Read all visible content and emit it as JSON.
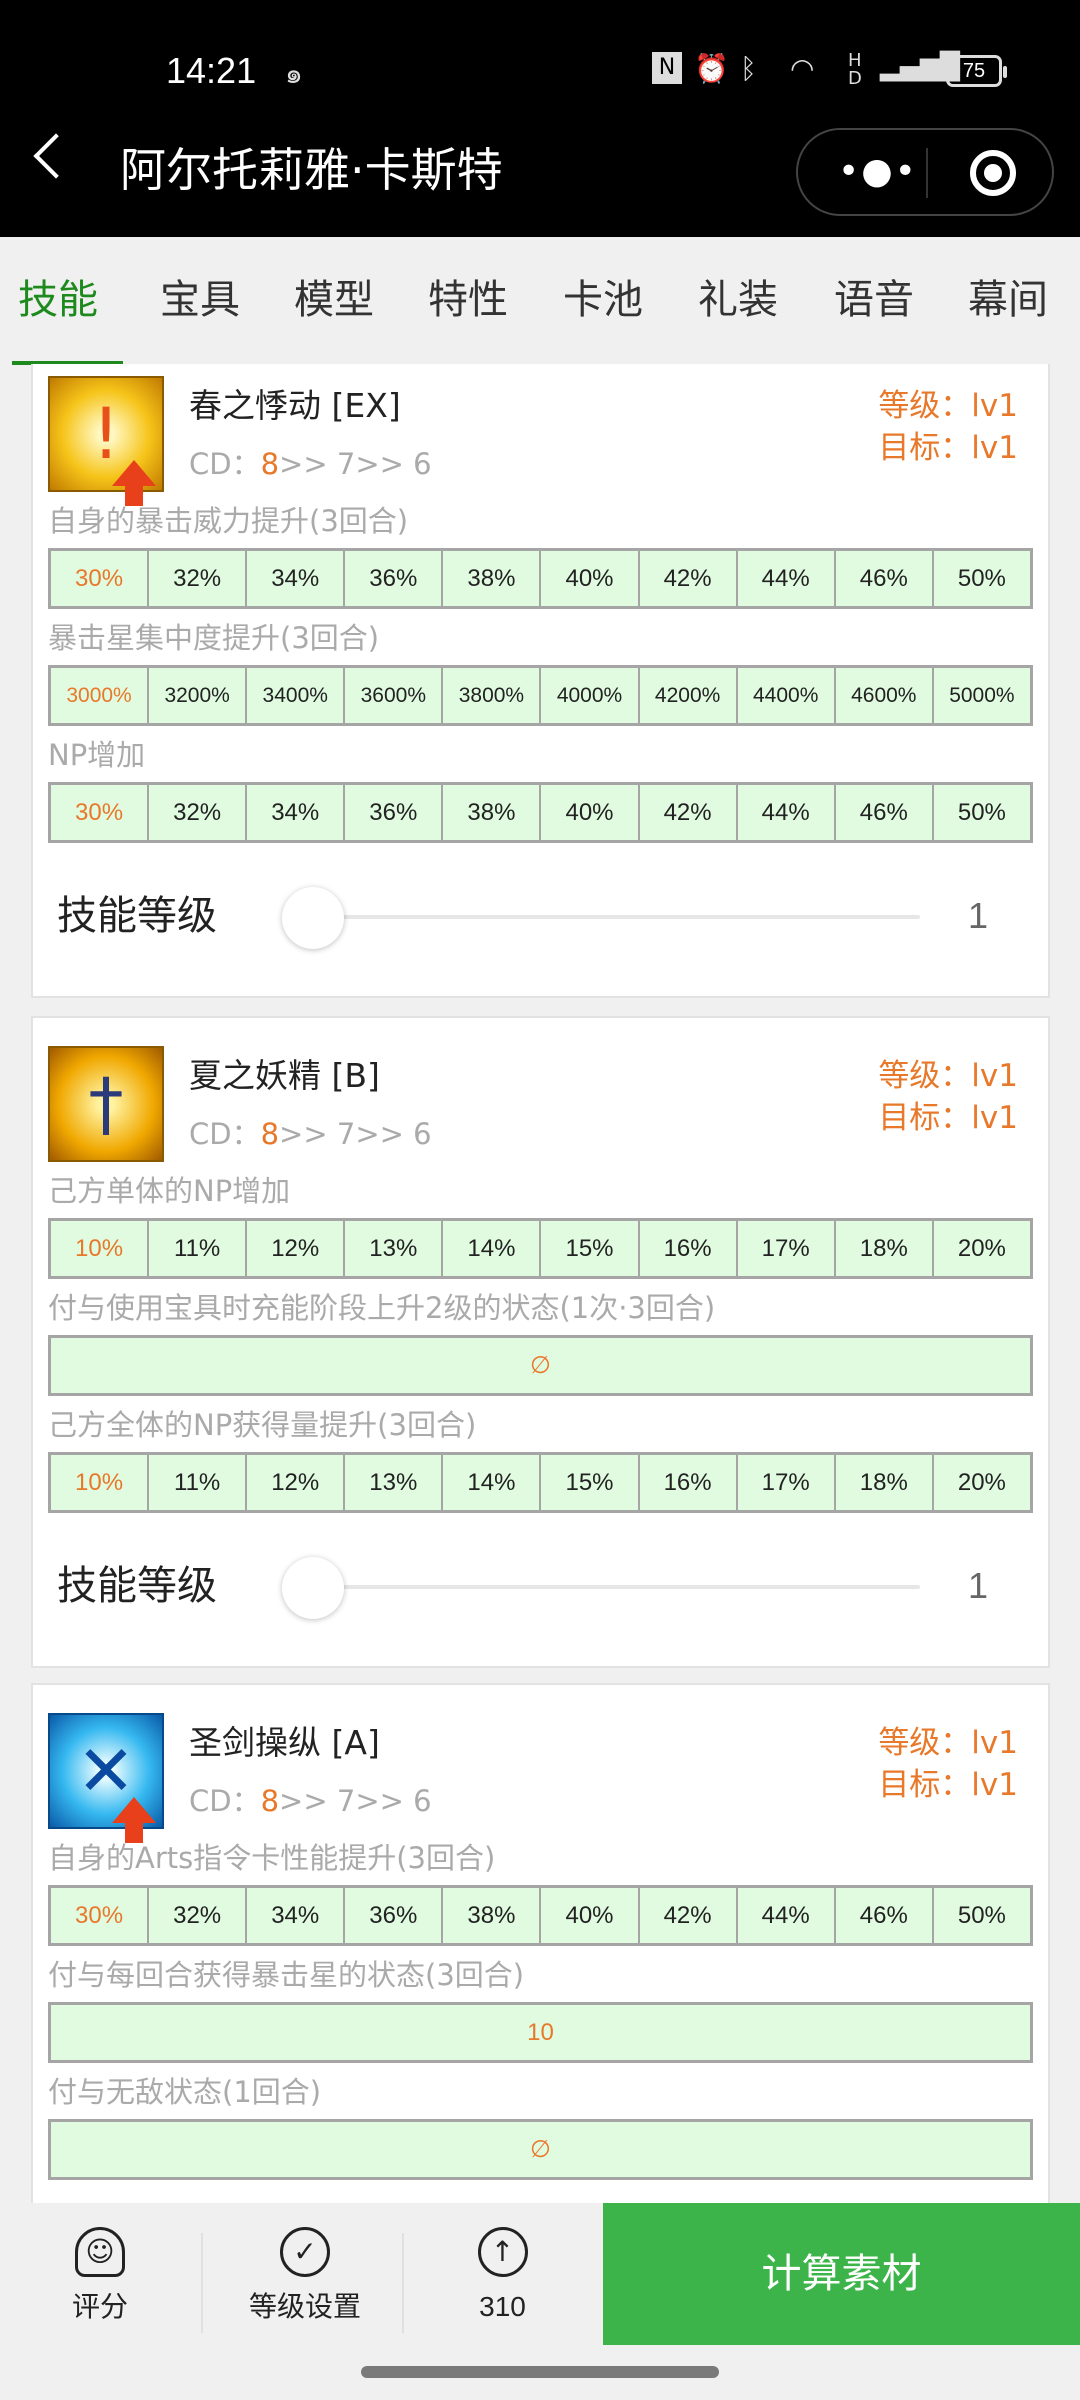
{
  "status_bar": {
    "time": "14:21",
    "battery": "75",
    "icons": [
      "weibo-icon",
      "nfc-icon",
      "alarm-icon",
      "bluetooth-icon",
      "wifi-icon",
      "hd-icon",
      "5g-signal-icon",
      "battery-icon"
    ]
  },
  "header": {
    "title": "阿尔托莉雅·卡斯特",
    "back_icon": "chevron-left-icon",
    "more_icon": "more-dots-icon",
    "close_icon": "target-circle-icon"
  },
  "tabs": [
    {
      "label": "技能",
      "active": true
    },
    {
      "label": "宝具"
    },
    {
      "label": "模型"
    },
    {
      "label": "特性"
    },
    {
      "label": "卡池"
    },
    {
      "label": "礼装"
    },
    {
      "label": "语音"
    },
    {
      "label": "幕间"
    }
  ],
  "colors": {
    "accent_green": "#1e8a1e",
    "button_green": "#3cb44a",
    "orange": "#e8782a",
    "cell_bg": "#e0fbe0"
  },
  "skills": [
    {
      "name": "春之悸动 [EX]",
      "icon": "critical-up-icon",
      "cd_label": "CD：",
      "cd_first": "8",
      "cd_rest": ">> 7>> 6",
      "level": "等级：lv1",
      "target": "目标：lv1",
      "effects": [
        {
          "desc": "自身的暴击威力提升(3回合)",
          "values": [
            "30%",
            "32%",
            "34%",
            "36%",
            "38%",
            "40%",
            "42%",
            "44%",
            "46%",
            "50%"
          ]
        },
        {
          "desc": "暴击星集中度提升(3回合)",
          "values": [
            "3000%",
            "3200%",
            "3400%",
            "3600%",
            "3800%",
            "4000%",
            "4200%",
            "4400%",
            "4600%",
            "5000%"
          ]
        },
        {
          "desc": "NP增加",
          "values": [
            "30%",
            "32%",
            "34%",
            "36%",
            "38%",
            "40%",
            "42%",
            "44%",
            "46%",
            "50%"
          ]
        }
      ],
      "slider_label": "技能等级",
      "slider_value": "1"
    },
    {
      "name": "夏之妖精 [B]",
      "icon": "sword-icon",
      "cd_label": "CD：",
      "cd_first": "8",
      "cd_rest": ">> 7>> 6",
      "level": "等级：lv1",
      "target": "目标：lv1",
      "effects": [
        {
          "desc": "己方单体的NP增加",
          "values": [
            "10%",
            "11%",
            "12%",
            "13%",
            "14%",
            "15%",
            "16%",
            "17%",
            "18%",
            "20%"
          ]
        },
        {
          "desc": "付与使用宝具时充能阶段上升2级的状态(1次·3回合)",
          "values": [
            "∅"
          ]
        },
        {
          "desc": "己方全体的NP获得量提升(3回合)",
          "values": [
            "10%",
            "11%",
            "12%",
            "13%",
            "14%",
            "15%",
            "16%",
            "17%",
            "18%",
            "20%"
          ]
        }
      ],
      "slider_label": "技能等级",
      "slider_value": "1"
    },
    {
      "name": "圣剑操纵 [A]",
      "icon": "arts-up-icon",
      "cd_label": "CD：",
      "cd_first": "8",
      "cd_rest": ">> 7>> 6",
      "level": "等级：lv1",
      "target": "目标：lv1",
      "effects": [
        {
          "desc": "自身的Arts指令卡性能提升(3回合)",
          "values": [
            "30%",
            "32%",
            "34%",
            "36%",
            "38%",
            "40%",
            "42%",
            "44%",
            "46%",
            "50%"
          ]
        },
        {
          "desc": "付与每回合获得暴击星的状态(3回合)",
          "values": [
            "10"
          ]
        },
        {
          "desc": "付与无敌状态(1回合)",
          "values": [
            "∅"
          ]
        }
      ]
    }
  ],
  "bottom_bar": {
    "rate_label": "评分",
    "level_set_label": "等级设置",
    "up_count": "310",
    "calc_label": "计算素材"
  }
}
